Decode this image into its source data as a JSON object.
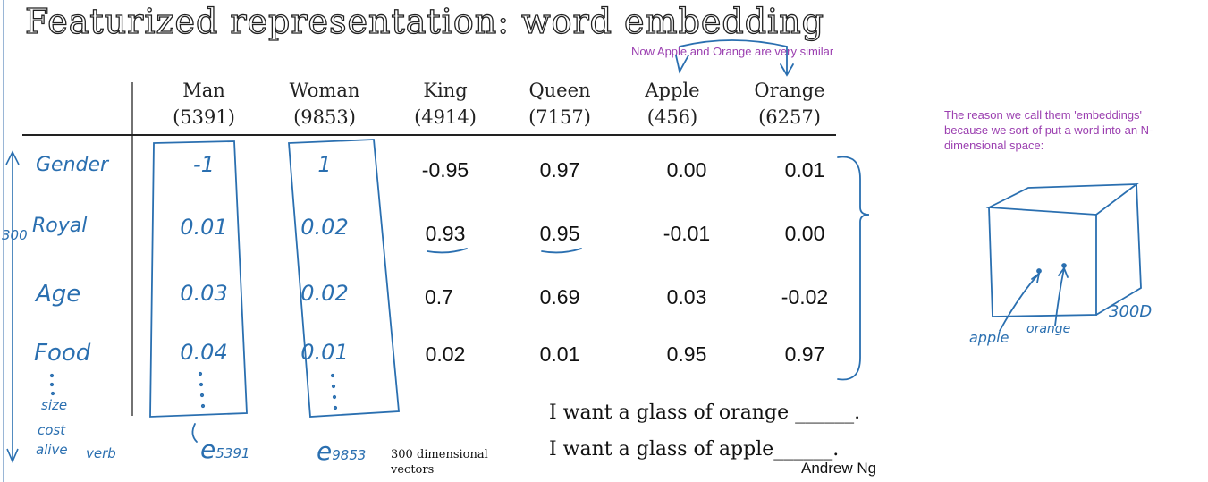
{
  "title": "Featurized representation: word embedding",
  "columns": [
    {
      "word": "Man",
      "index": "(5391)"
    },
    {
      "word": "Woman",
      "index": "(9853)"
    },
    {
      "word": "King",
      "index": "(4914)"
    },
    {
      "word": "Queen",
      "index": "(7157)"
    },
    {
      "word": "Apple",
      "index": "(456)"
    },
    {
      "word": "Orange",
      "index": "(6257)"
    }
  ],
  "features": [
    "Gender",
    "Royal",
    "Age",
    "Food"
  ],
  "extra_features": [
    "size",
    "cost",
    "alive",
    "verb"
  ],
  "dimension_label": "300",
  "rows": [
    [
      "-1",
      "1",
      "-0.95",
      "0.97",
      "0.00",
      "0.01"
    ],
    [
      "0.01",
      "0.02",
      "0.93",
      "0.95",
      "-0.01",
      "0.00"
    ],
    [
      "0.03",
      "0.02",
      "0.7",
      "0.69",
      "0.03",
      "-0.02"
    ],
    [
      "0.04",
      "0.01",
      "0.02",
      "0.01",
      "0.95",
      "0.97"
    ]
  ],
  "vector_labels": [
    {
      "letter": "e",
      "subscript": "5391"
    },
    {
      "letter": "e",
      "subscript": "9853"
    }
  ],
  "vectors_caption": "300 dimensional vectors",
  "annotation_similar": "Now Apple and Orange are very similar",
  "annotation_embeddings": "The reason we call them 'embeddings' because we sort of put a word into an N-dimensional space:",
  "cube": {
    "label_apple": "apple",
    "label_orange": "orange",
    "label_dim": "300D"
  },
  "sentences": [
    "I want a glass of orange ______.",
    "I want a glass of apple______."
  ],
  "signature": "Andrew Ng",
  "colors": {
    "ink": "#2a6fb0",
    "note": "#9b3fb0",
    "text": "#111111"
  }
}
